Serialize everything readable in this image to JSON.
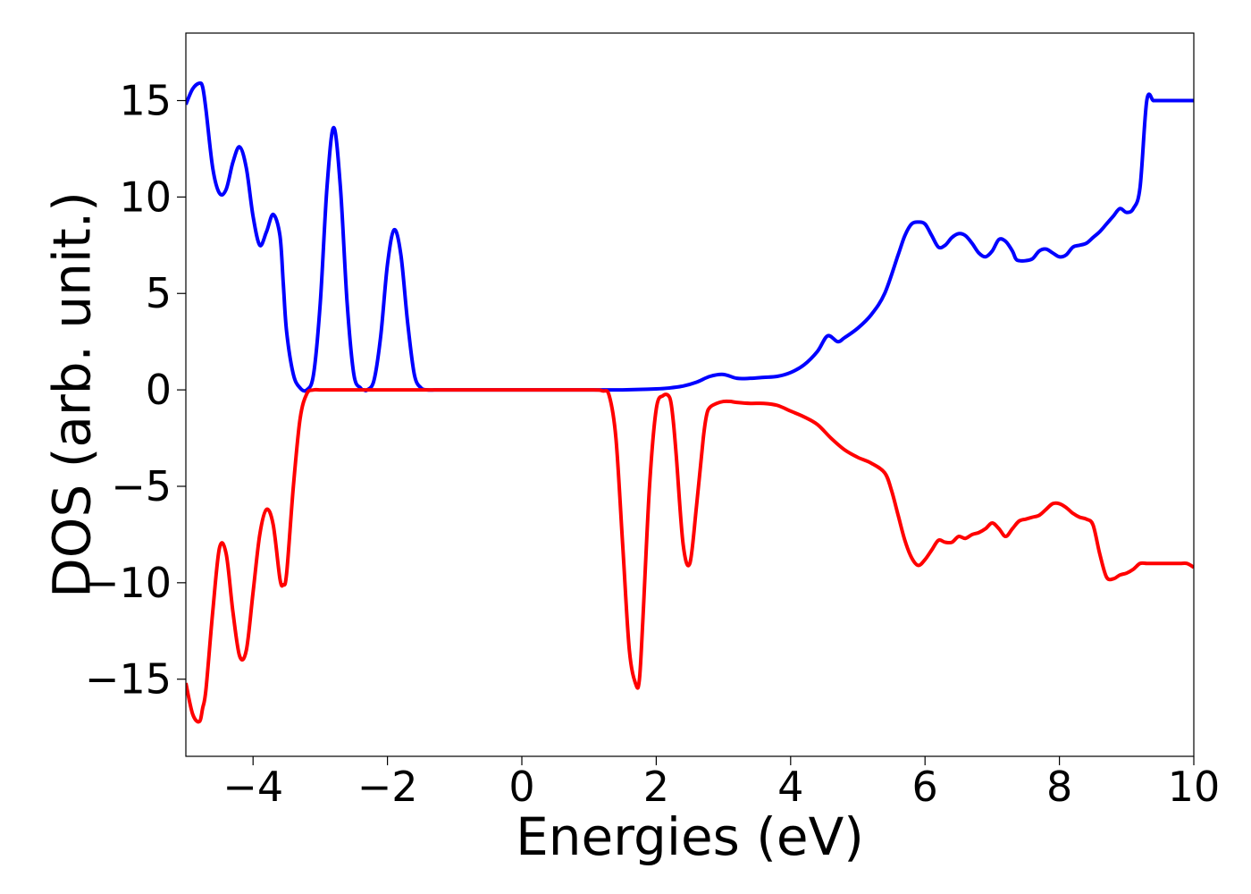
{
  "chart_data": {
    "type": "line",
    "xlabel": "Energies (eV)",
    "ylabel": "DOS (arb. unit.)",
    "xlim": [
      -5,
      10
    ],
    "ylim": [
      -19,
      18.5
    ],
    "xticks": [
      -4,
      -2,
      0,
      2,
      4,
      6,
      8,
      10
    ],
    "xtick_labels": [
      "−4",
      "−2",
      "0",
      "2",
      "4",
      "6",
      "8",
      "10"
    ],
    "yticks": [
      15,
      10,
      5,
      0,
      -5,
      -10,
      -15
    ],
    "ytick_labels": [
      "15",
      "10",
      "5",
      "0",
      "−5",
      "−10",
      "−15"
    ],
    "grid": false,
    "series": [
      {
        "color": "#0000ff",
        "x": [
          -5.0,
          -4.9,
          -4.8,
          -4.75,
          -4.7,
          -4.6,
          -4.5,
          -4.4,
          -4.3,
          -4.2,
          -4.1,
          -4.0,
          -3.9,
          -3.8,
          -3.7,
          -3.6,
          -3.55,
          -3.5,
          -3.4,
          -3.3,
          -3.2,
          -3.1,
          -3.0,
          -2.9,
          -2.8,
          -2.7,
          -2.6,
          -2.5,
          -2.4,
          -2.35,
          -2.3,
          -2.2,
          -2.1,
          -2.0,
          -1.9,
          -1.8,
          -1.7,
          -1.6,
          -1.5,
          -1.4,
          -1.3,
          -1.2,
          -1.1,
          -1.0,
          -0.9,
          -0.8,
          -0.7,
          -0.6,
          -0.5,
          0.0,
          1.0,
          1.5,
          2.0,
          2.2,
          2.4,
          2.6,
          2.8,
          3.0,
          3.2,
          3.4,
          3.6,
          3.8,
          4.0,
          4.2,
          4.4,
          4.55,
          4.7,
          4.8,
          5.0,
          5.2,
          5.4,
          5.6,
          5.7,
          5.8,
          5.9,
          6.0,
          6.1,
          6.2,
          6.3,
          6.4,
          6.5,
          6.6,
          6.7,
          6.8,
          6.9,
          7.0,
          7.1,
          7.2,
          7.3,
          7.35,
          7.4,
          7.5,
          7.6,
          7.7,
          7.8,
          7.9,
          8.0,
          8.1,
          8.2,
          8.3,
          8.4,
          8.5,
          8.6,
          8.7,
          8.8,
          8.9,
          9.0,
          9.1,
          9.2,
          9.3,
          9.4,
          9.5,
          9.6,
          9.7,
          9.8,
          9.9,
          10.0
        ],
        "y": [
          14.8,
          15.6,
          15.9,
          15.7,
          14.5,
          11.5,
          10.2,
          10.4,
          11.8,
          12.6,
          11.5,
          9.0,
          7.5,
          8.2,
          9.1,
          8.0,
          5.5,
          3.0,
          0.8,
          0.1,
          0.0,
          0.8,
          4.5,
          10.5,
          13.6,
          10.5,
          4.5,
          0.8,
          0.1,
          0.0,
          0.0,
          0.5,
          2.8,
          6.5,
          8.3,
          7.0,
          3.5,
          0.8,
          0.1,
          0.0,
          0.0,
          0.0,
          0.0,
          0.0,
          0.0,
          0.0,
          0.0,
          0.0,
          0.0,
          0.0,
          0.0,
          0.0,
          0.05,
          0.1,
          0.2,
          0.4,
          0.7,
          0.8,
          0.6,
          0.6,
          0.65,
          0.7,
          0.9,
          1.3,
          2.0,
          2.8,
          2.5,
          2.7,
          3.2,
          3.9,
          5.0,
          7.0,
          8.0,
          8.6,
          8.7,
          8.6,
          8.0,
          7.4,
          7.5,
          7.9,
          8.1,
          8.0,
          7.6,
          7.1,
          6.9,
          7.2,
          7.8,
          7.7,
          7.2,
          6.8,
          6.7,
          6.7,
          6.8,
          7.2,
          7.3,
          7.1,
          6.9,
          7.0,
          7.4,
          7.5,
          7.6,
          7.9,
          8.2,
          8.6,
          9.0,
          9.4,
          9.2,
          9.4,
          10.5,
          15.0,
          15.0,
          15.0,
          15.0,
          15.0,
          15.0,
          15.0,
          15.0
        ]
      },
      {
        "color": "#ff0000",
        "x": [
          -5.0,
          -4.9,
          -4.8,
          -4.75,
          -4.7,
          -4.6,
          -4.5,
          -4.4,
          -4.3,
          -4.2,
          -4.1,
          -4.0,
          -3.9,
          -3.8,
          -3.7,
          -3.6,
          -3.55,
          -3.5,
          -3.4,
          -3.3,
          -3.2,
          -3.1,
          -3.0,
          -2.9,
          -2.5,
          -2.0,
          -1.0,
          0.0,
          1.0,
          1.2,
          1.3,
          1.4,
          1.5,
          1.6,
          1.7,
          1.75,
          1.8,
          1.9,
          2.0,
          2.1,
          2.2,
          2.25,
          2.3,
          2.4,
          2.5,
          2.6,
          2.7,
          2.75,
          2.8,
          2.9,
          3.0,
          3.1,
          3.2,
          3.4,
          3.6,
          3.8,
          4.0,
          4.2,
          4.4,
          4.6,
          4.8,
          5.0,
          5.2,
          5.4,
          5.5,
          5.6,
          5.7,
          5.8,
          5.9,
          6.0,
          6.1,
          6.2,
          6.3,
          6.4,
          6.5,
          6.6,
          6.7,
          6.8,
          6.9,
          7.0,
          7.1,
          7.2,
          7.3,
          7.4,
          7.5,
          7.6,
          7.7,
          7.8,
          7.9,
          8.0,
          8.1,
          8.2,
          8.3,
          8.4,
          8.5,
          8.6,
          8.7,
          8.8,
          8.9,
          9.0,
          9.1,
          9.2,
          9.3,
          9.4,
          9.5,
          9.6,
          9.7,
          9.8,
          9.9,
          10.0
        ],
        "y": [
          -15.2,
          -16.8,
          -17.2,
          -16.5,
          -15.5,
          -11.5,
          -8.2,
          -8.5,
          -11.5,
          -13.8,
          -13.5,
          -10.5,
          -7.5,
          -6.2,
          -7.0,
          -9.8,
          -10.1,
          -9.5,
          -5.0,
          -1.5,
          -0.2,
          0.0,
          0.0,
          0.0,
          0.0,
          0.0,
          0.0,
          0.0,
          0.0,
          -0.05,
          -0.3,
          -2.5,
          -8.0,
          -13.5,
          -15.3,
          -15.0,
          -12.0,
          -5.0,
          -1.0,
          -0.3,
          -0.4,
          -1.5,
          -3.5,
          -8.0,
          -9.0,
          -6.0,
          -2.5,
          -1.3,
          -0.9,
          -0.7,
          -0.6,
          -0.6,
          -0.65,
          -0.7,
          -0.7,
          -0.8,
          -1.1,
          -1.4,
          -1.8,
          -2.5,
          -3.1,
          -3.5,
          -3.8,
          -4.3,
          -5.2,
          -6.5,
          -7.8,
          -8.7,
          -9.1,
          -8.8,
          -8.3,
          -7.8,
          -7.9,
          -7.9,
          -7.6,
          -7.7,
          -7.5,
          -7.4,
          -7.2,
          -6.9,
          -7.2,
          -7.6,
          -7.2,
          -6.8,
          -6.7,
          -6.6,
          -6.5,
          -6.2,
          -5.9,
          -5.9,
          -6.1,
          -6.4,
          -6.6,
          -6.7,
          -7.0,
          -8.5,
          -9.7,
          -9.8,
          -9.6,
          -9.5,
          -9.3,
          -9.0,
          -9.0,
          -9.0,
          -9.0,
          -9.0,
          -9.0,
          -9.0,
          -9.0,
          -9.2
        ]
      }
    ]
  }
}
